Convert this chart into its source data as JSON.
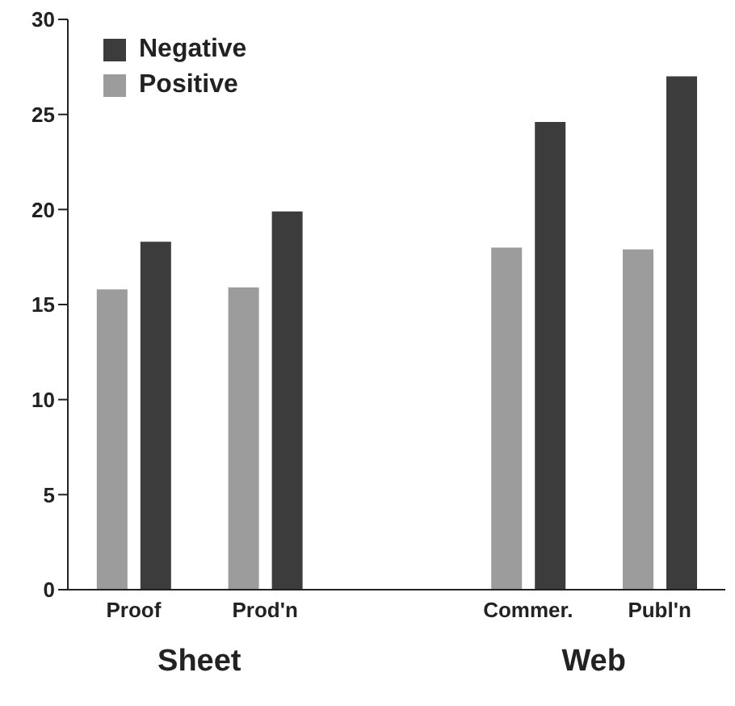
{
  "chart_data": {
    "type": "bar",
    "categories": [
      "Proof",
      "Prod'n",
      null,
      "Commer.",
      "Publ'n"
    ],
    "series": [
      {
        "name": "Positive",
        "color": "#9c9c9c",
        "values": [
          15.8,
          15.9,
          null,
          18.0,
          17.9
        ]
      },
      {
        "name": "Negative",
        "color": "#3c3c3c",
        "values": [
          18.3,
          19.9,
          null,
          24.6,
          27.0
        ]
      }
    ],
    "ylim": [
      0,
      30
    ],
    "yticks": [
      0,
      5,
      10,
      15,
      20,
      25,
      30
    ],
    "grid": false,
    "legend": "top left",
    "annotations": [
      "Sheet",
      "Web"
    ]
  }
}
